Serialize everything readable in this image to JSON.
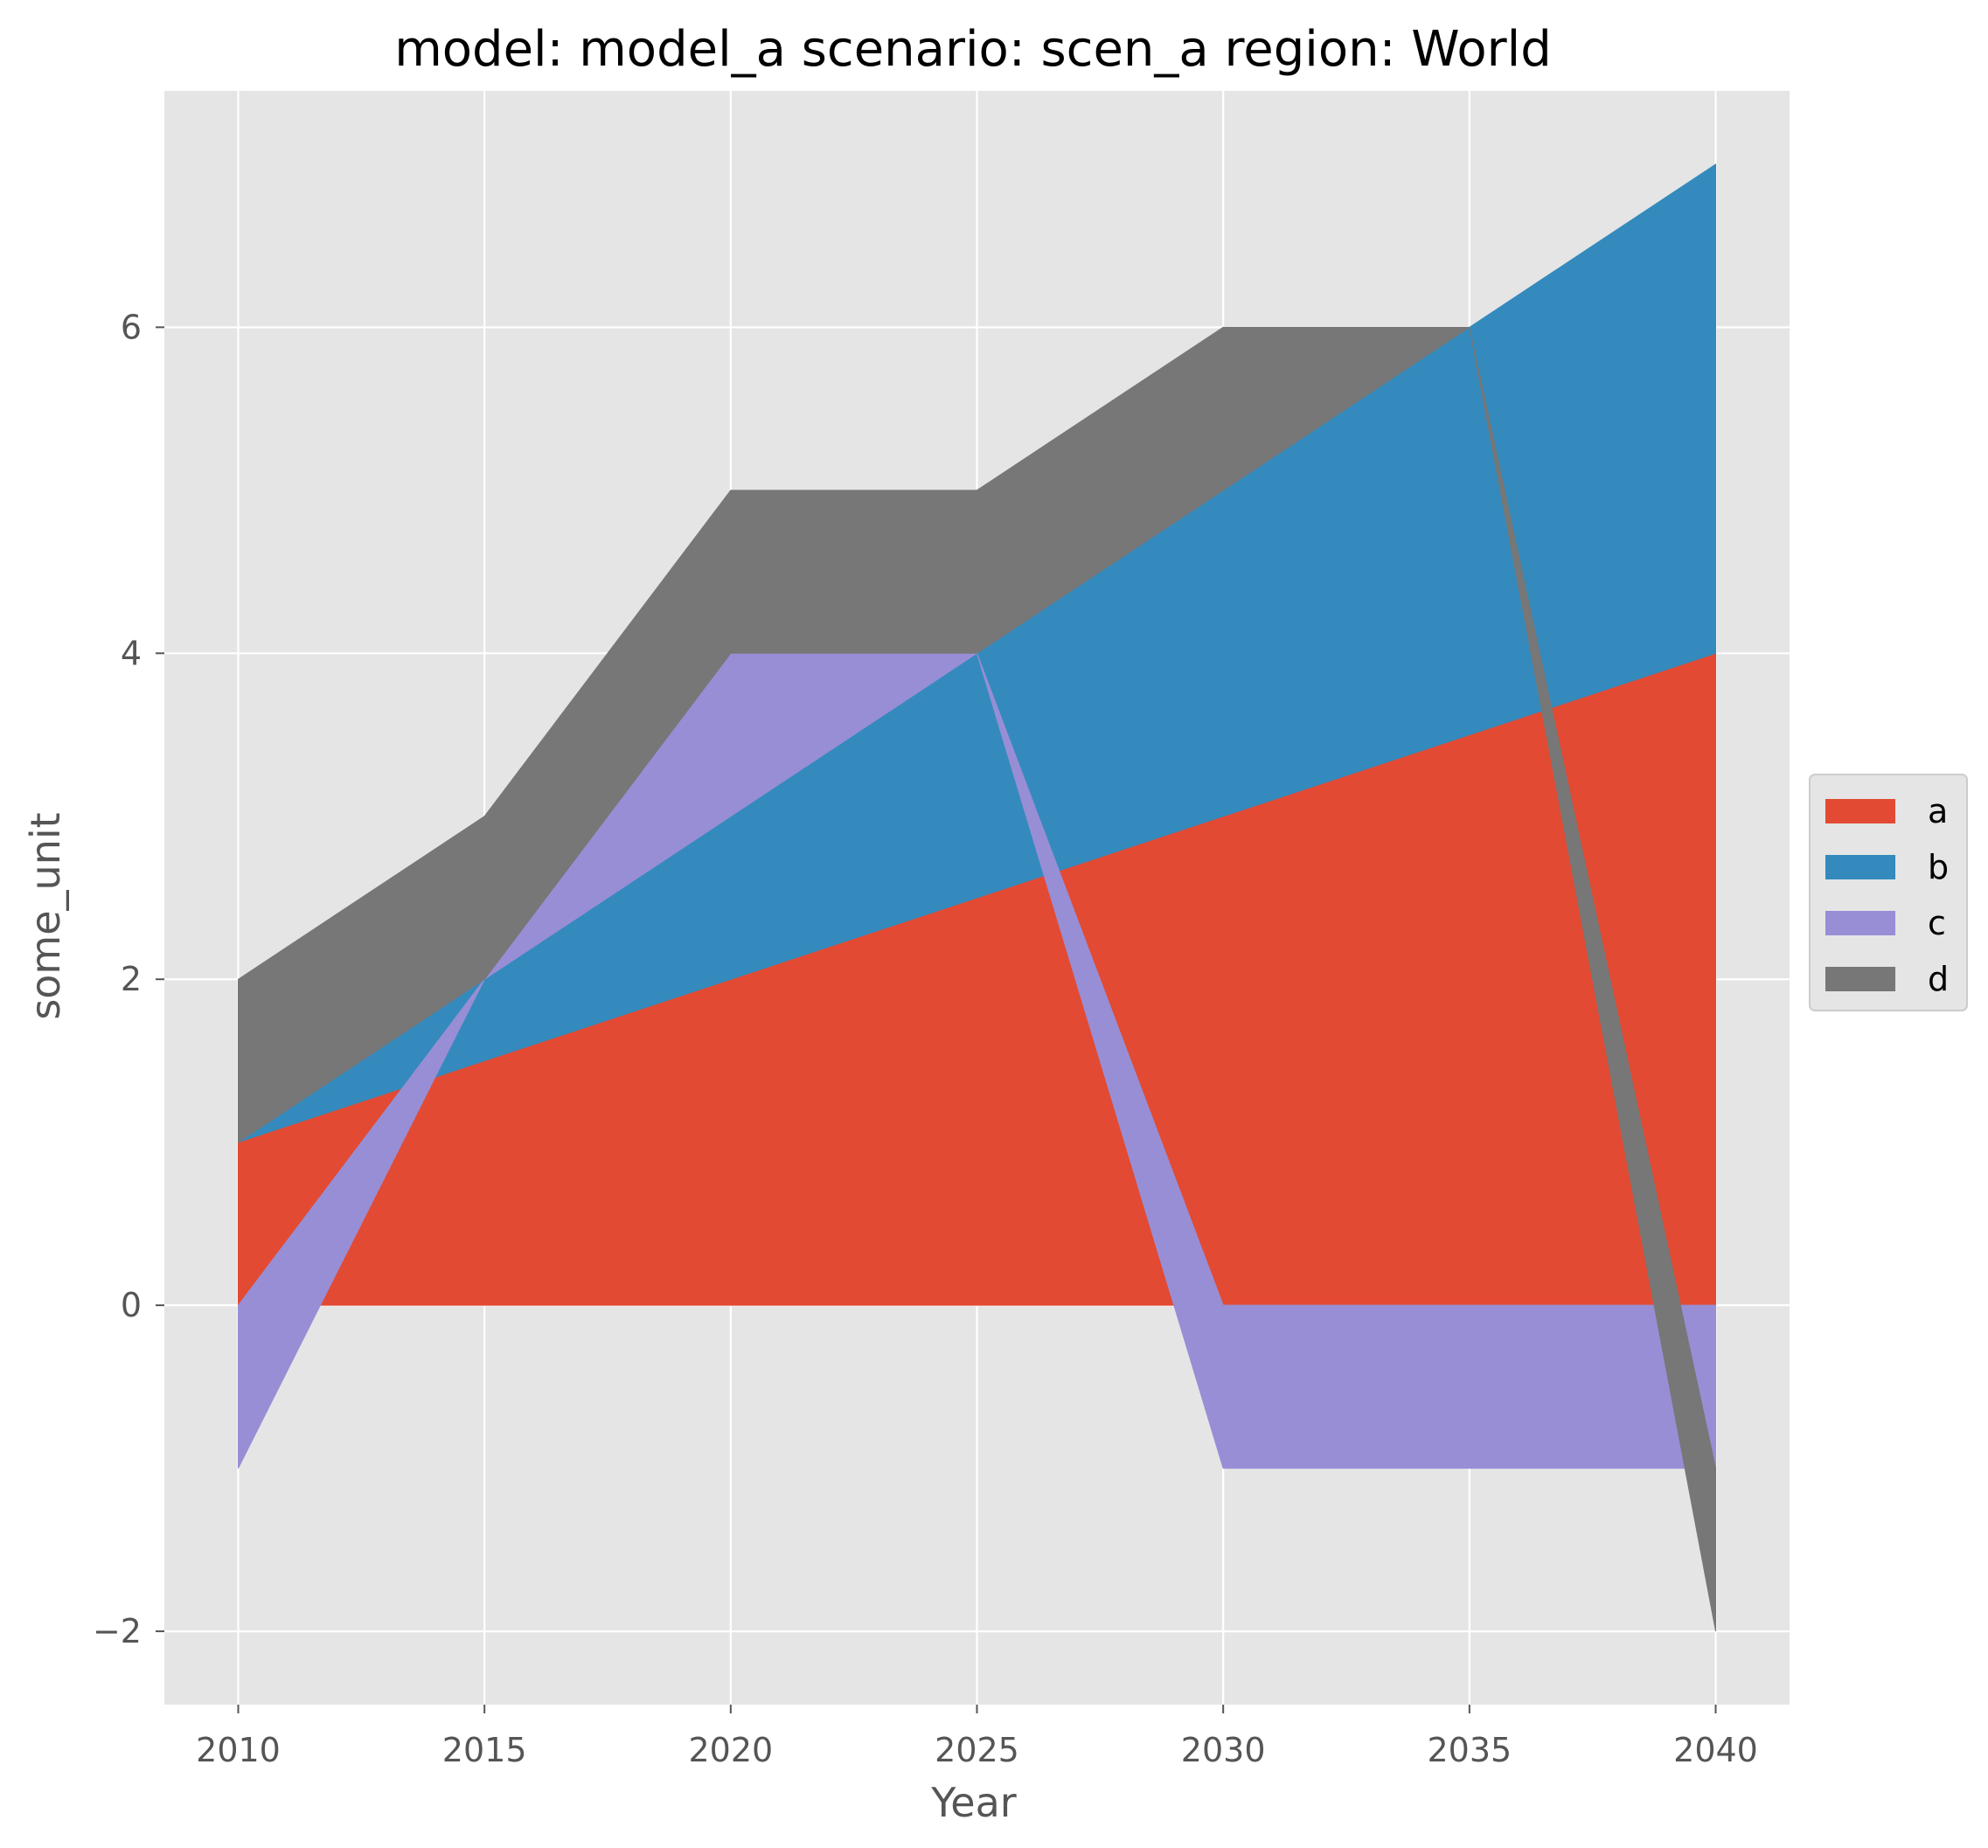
{
  "chart_data": {
    "type": "area",
    "stacked": "positive and negative values stacked separately",
    "title": "model: model_a scenario: scen_a region: World",
    "xlabel": "Year",
    "ylabel": "some_unit",
    "x": [
      2010,
      2015,
      2020,
      2025,
      2030,
      2035,
      2040
    ],
    "xlim": [
      2008.5,
      2041.5
    ],
    "ylim": [
      -2.45,
      7.45
    ],
    "xticks": [
      2010,
      2015,
      2020,
      2025,
      2030,
      2035,
      2040
    ],
    "yticks": [
      -2,
      0,
      2,
      4,
      6
    ],
    "ytick_labels": [
      "−2",
      "0",
      "2",
      "4",
      "6"
    ],
    "grid": true,
    "style": "ggplot",
    "legend_position": "center-right outside plot",
    "series": [
      {
        "name": "a",
        "color": "#E24A33",
        "values": [
          1,
          1.5,
          2,
          2.5,
          3,
          3.5,
          4
        ]
      },
      {
        "name": "b",
        "color": "#348ABD",
        "values": [
          0,
          0.5,
          1,
          1.5,
          2,
          2.5,
          3
        ]
      },
      {
        "name": "c",
        "color": "#988ED5",
        "values": [
          -1,
          0,
          1,
          0,
          -1,
          -1,
          -1
        ]
      },
      {
        "name": "d",
        "color": "#777777",
        "values": [
          1,
          1,
          1,
          1,
          1,
          0,
          -1
        ]
      }
    ]
  }
}
